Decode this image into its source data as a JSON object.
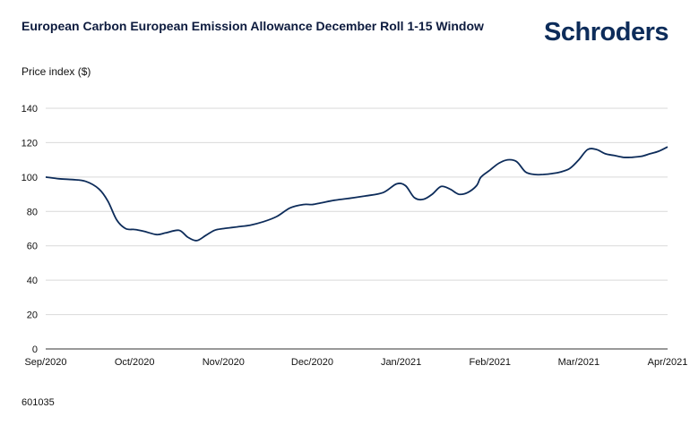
{
  "header": {
    "title": "European Carbon European Emission Allowance December Roll 1-15 Window",
    "logo_text": "Schroders"
  },
  "footer": {
    "code": "601035"
  },
  "colors": {
    "line": "#0d2c5a",
    "grid": "#d9d9d9",
    "axis": "#333333"
  },
  "chart_data": {
    "type": "line",
    "ylabel": "Price index ($)",
    "ylim": [
      0,
      140
    ],
    "yticks": [
      0,
      20,
      40,
      60,
      80,
      100,
      120,
      140
    ],
    "xlim": [
      0,
      7
    ],
    "xticks": [
      {
        "value": 0,
        "label": "Sep/2020"
      },
      {
        "value": 1,
        "label": "Oct/2020"
      },
      {
        "value": 2,
        "label": "Nov/2020"
      },
      {
        "value": 3,
        "label": "Dec/2020"
      },
      {
        "value": 4,
        "label": "Jan/2021"
      },
      {
        "value": 5,
        "label": "Feb/2021"
      },
      {
        "value": 6,
        "label": "Mar/2021"
      },
      {
        "value": 7,
        "label": "Apr/2021"
      }
    ],
    "grid": true,
    "series": [
      {
        "x": [
          0,
          0.15,
          0.3,
          0.45,
          0.6,
          0.7,
          0.8,
          0.9,
          1.0,
          1.1,
          1.25,
          1.35,
          1.5,
          1.6,
          1.7,
          1.8,
          1.9,
          2.0,
          2.15,
          2.3,
          2.45,
          2.6,
          2.75,
          2.9,
          3.0,
          3.1,
          3.25,
          3.4,
          3.6,
          3.8,
          3.95,
          4.05,
          4.15,
          4.25,
          4.35,
          4.45,
          4.55,
          4.65,
          4.75,
          4.85,
          4.9,
          5.0,
          5.1,
          5.2,
          5.3,
          5.4,
          5.5,
          5.6,
          5.7,
          5.8,
          5.9,
          6.0,
          6.1,
          6.2,
          6.3,
          6.4,
          6.5,
          6.6,
          6.7,
          6.8,
          6.9,
          7.0
        ],
        "y": [
          100,
          99,
          98.5,
          97.5,
          93,
          86,
          75,
          70,
          69.5,
          68.5,
          66.5,
          67.5,
          69,
          65,
          63,
          66,
          69,
          70,
          71,
          72,
          74,
          77,
          82,
          84,
          84,
          85,
          86.5,
          87.5,
          89,
          91,
          96,
          95,
          88,
          87,
          90,
          94.5,
          93,
          90,
          91,
          95,
          100,
          104,
          108,
          110,
          109,
          103,
          101.5,
          101.5,
          102,
          103,
          105,
          110,
          116,
          116,
          113.5,
          112.5,
          111.5,
          111.5,
          112,
          113.5,
          115,
          117.5
        ]
      }
    ]
  }
}
